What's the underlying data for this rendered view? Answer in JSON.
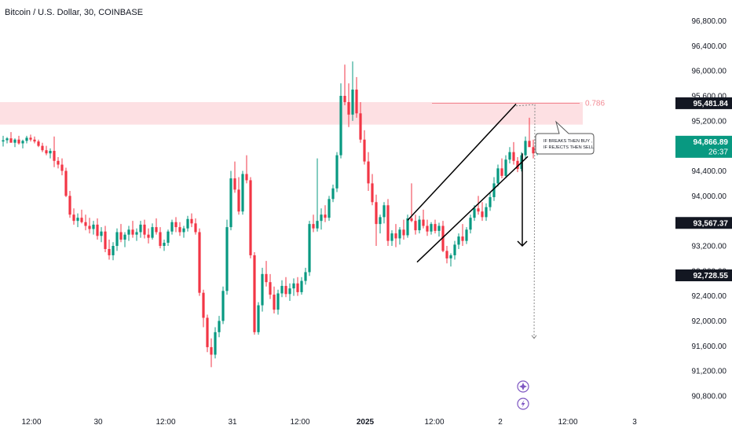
{
  "header": {
    "title": "Bitcoin / U.S. Dollar, 30, COINBASE"
  },
  "colors": {
    "up": "#26a69a",
    "up_candle": "#089981",
    "down": "#f23645",
    "zone": "#fde0e3",
    "fib_line": "#f28b95",
    "axis_text": "#131722",
    "badge_black": "#131722",
    "badge_green": "#089981",
    "icon_purple": "#7e57c2"
  },
  "price_axis": {
    "ticks": [
      "96,800.00",
      "96,400.00",
      "96,000.00",
      "95,600.00",
      "95,200.00",
      "94,800.00",
      "94,400.00",
      "94,000.00",
      "93,600.00",
      "93,200.00",
      "92,800.00",
      "92,400.00",
      "92,000.00",
      "91,600.00",
      "91,200.00",
      "90,800.00"
    ],
    "badges": {
      "resistance": "95,481.84",
      "current_price": "94,866.89",
      "countdown": "26:37",
      "level_mid": "93,567.37",
      "level_low": "92,728.55"
    }
  },
  "time_axis": {
    "labels": [
      "12:00",
      "30",
      "12:00",
      "31",
      "12:00",
      "2025",
      "12:00",
      "2",
      "12:00",
      "3"
    ]
  },
  "annotations": {
    "fib_label": "0.786",
    "note_line1": "IF BREAKS THEN BUY ,",
    "note_line2": "IF REJECTS THEN SELL"
  },
  "icons": {
    "top": "sparkle-icon",
    "bottom": "lightning-icon"
  },
  "chart_data": {
    "type": "candlestick",
    "title": "Bitcoin / U.S. Dollar, 30, COINBASE",
    "ylim": [
      90500,
      97000
    ],
    "price_ticks": [
      96800,
      96400,
      96000,
      95600,
      95200,
      94800,
      94400,
      94000,
      93600,
      93200,
      92800,
      92400,
      92000,
      91600,
      91200,
      90800
    ],
    "x_labels": [
      "12:00",
      "30",
      "12:00",
      "31",
      "12:00",
      "2025",
      "12:00",
      "2",
      "12:00",
      "3"
    ],
    "resistance_zone": [
      95140,
      95500
    ],
    "fib_level": {
      "label": "0.786",
      "price": 95480
    },
    "channel_upper": [
      [
        93610,
        93620
      ],
      [
        95470,
        95480
      ]
    ],
    "channel_lower": [
      [
        92940,
        92940
      ],
      [
        94630,
        94630
      ]
    ],
    "projection_arrow_target": 93200,
    "dotted_projection_target": 91720,
    "current_price": 94866.89,
    "price_levels": [
      95481.84,
      93567.37,
      92728.55
    ],
    "candles_ohlc": [
      [
        94870,
        94960,
        94790,
        94890
      ],
      [
        94890,
        94940,
        94840,
        94920
      ],
      [
        94920,
        95020,
        94860,
        94850
      ],
      [
        94850,
        94920,
        94780,
        94900
      ],
      [
        94900,
        94960,
        94820,
        94840
      ],
      [
        94840,
        94900,
        94760,
        94880
      ],
      [
        94880,
        94960,
        94840,
        94930
      ],
      [
        94930,
        94980,
        94870,
        94900
      ],
      [
        94900,
        94950,
        94840,
        94870
      ],
      [
        94870,
        94900,
        94780,
        94800
      ],
      [
        94800,
        94850,
        94700,
        94730
      ],
      [
        94730,
        94800,
        94650,
        94680
      ],
      [
        94680,
        94760,
        94600,
        94720
      ],
      [
        94720,
        94950,
        94460,
        94560
      ],
      [
        94560,
        94620,
        94440,
        94500
      ],
      [
        94500,
        94600,
        94330,
        94400
      ],
      [
        94400,
        94450,
        93980,
        94000
      ],
      [
        94000,
        94080,
        93650,
        93700
      ],
      [
        93700,
        93800,
        93540,
        93600
      ],
      [
        93600,
        93720,
        93500,
        93650
      ],
      [
        93650,
        93780,
        93560,
        93580
      ],
      [
        93580,
        93700,
        93450,
        93520
      ],
      [
        93520,
        93650,
        93400,
        93470
      ],
      [
        93470,
        93600,
        93380,
        93540
      ],
      [
        93540,
        93640,
        93300,
        93360
      ],
      [
        93360,
        93500,
        93260,
        93430
      ],
      [
        93430,
        93520,
        93100,
        93150
      ],
      [
        93150,
        93300,
        92980,
        93050
      ],
      [
        93050,
        93260,
        92970,
        93200
      ],
      [
        93200,
        93480,
        93120,
        93420
      ],
      [
        93420,
        93550,
        93260,
        93300
      ],
      [
        93300,
        93420,
        93180,
        93380
      ],
      [
        93380,
        93520,
        93280,
        93460
      ],
      [
        93460,
        93600,
        93330,
        93380
      ],
      [
        93380,
        93480,
        93280,
        93420
      ],
      [
        93420,
        93600,
        93330,
        93540
      ],
      [
        93540,
        93620,
        93320,
        93380
      ],
      [
        93380,
        93480,
        93240,
        93330
      ],
      [
        93330,
        93560,
        93300,
        93500
      ],
      [
        93500,
        93640,
        93380,
        93420
      ],
      [
        93420,
        93500,
        93160,
        93200
      ],
      [
        93200,
        93300,
        93120,
        93250
      ],
      [
        93250,
        93460,
        93200,
        93430
      ],
      [
        93430,
        93620,
        93380,
        93580
      ],
      [
        93580,
        93660,
        93420,
        93500
      ],
      [
        93500,
        93580,
        93360,
        93420
      ],
      [
        93420,
        93520,
        93330,
        93480
      ],
      [
        93480,
        93680,
        93430,
        93630
      ],
      [
        93630,
        93720,
        93500,
        93560
      ],
      [
        93560,
        93640,
        93380,
        93420
      ],
      [
        93420,
        93480,
        92400,
        92450
      ],
      [
        92450,
        92500,
        91900,
        92050
      ],
      [
        92050,
        92100,
        91500,
        91580
      ],
      [
        91580,
        91720,
        91260,
        91460
      ],
      [
        91460,
        91900,
        91400,
        91820
      ],
      [
        91820,
        92080,
        91740,
        92000
      ],
      [
        92000,
        92550,
        91950,
        92480
      ],
      [
        92480,
        93620,
        92420,
        93500
      ],
      [
        93500,
        94400,
        93450,
        94280
      ],
      [
        94280,
        94550,
        94050,
        94100
      ],
      [
        94100,
        94300,
        93700,
        93750
      ],
      [
        93750,
        94400,
        93700,
        94350
      ],
      [
        94350,
        94650,
        94200,
        94250
      ],
      [
        94250,
        94300,
        93000,
        93050
      ],
      [
        93050,
        93100,
        91780,
        91820
      ],
      [
        91820,
        92300,
        91780,
        92250
      ],
      [
        92250,
        92850,
        92150,
        92750
      ],
      [
        92750,
        92960,
        92550,
        92620
      ],
      [
        92620,
        92750,
        92350,
        92420
      ],
      [
        92420,
        92550,
        92120,
        92180
      ],
      [
        92180,
        92500,
        92100,
        92440
      ],
      [
        92440,
        92650,
        92380,
        92560
      ],
      [
        92560,
        92700,
        92380,
        92430
      ],
      [
        92430,
        92600,
        92320,
        92520
      ],
      [
        92520,
        92680,
        92400,
        92600
      ],
      [
        92600,
        92700,
        92400,
        92460
      ],
      [
        92460,
        92700,
        92420,
        92640
      ],
      [
        92640,
        92850,
        92580,
        92780
      ],
      [
        92780,
        93600,
        92720,
        93550
      ],
      [
        93550,
        93700,
        93420,
        93480
      ],
      [
        93480,
        94600,
        93430,
        93600
      ],
      [
        93600,
        93800,
        93460,
        93700
      ],
      [
        93700,
        93850,
        93580,
        93650
      ],
      [
        93650,
        94000,
        93600,
        93950
      ],
      [
        93950,
        94180,
        93900,
        94120
      ],
      [
        94120,
        94700,
        94060,
        94650
      ],
      [
        94650,
        95800,
        94600,
        95600
      ],
      [
        95600,
        96100,
        95450,
        95500
      ],
      [
        95500,
        95800,
        95100,
        95300
      ],
      [
        95300,
        96150,
        95200,
        95700
      ],
      [
        95700,
        95900,
        95250,
        95320
      ],
      [
        95320,
        95500,
        94850,
        94900
      ],
      [
        94900,
        95050,
        94500,
        94550
      ],
      [
        94550,
        94700,
        94080,
        94200
      ],
      [
        94200,
        94350,
        93850,
        93900
      ],
      [
        93900,
        94020,
        93200,
        93550
      ],
      [
        93550,
        93700,
        93400,
        93660
      ],
      [
        93660,
        93900,
        93560,
        93850
      ],
      [
        93850,
        93950,
        93200,
        93280
      ],
      [
        93280,
        93450,
        93200,
        93400
      ],
      [
        93400,
        93550,
        93180,
        93320
      ],
      [
        93320,
        93500,
        93220,
        93460
      ],
      [
        93460,
        93620,
        93300,
        93370
      ],
      [
        93370,
        93700,
        93330,
        93640
      ],
      [
        93640,
        94200,
        93580,
        93600
      ],
      [
        93600,
        93700,
        93380,
        93450
      ],
      [
        93450,
        93680,
        93400,
        93620
      ],
      [
        93620,
        93780,
        93480,
        93520
      ],
      [
        93520,
        93620,
        93360,
        93430
      ],
      [
        93430,
        93580,
        93380,
        93550
      ],
      [
        93550,
        93620,
        93400,
        93440
      ],
      [
        93440,
        93570,
        93350,
        93520
      ],
      [
        93520,
        93600,
        93100,
        93120
      ],
      [
        93120,
        93200,
        92920,
        93000
      ],
      [
        93000,
        93080,
        92870,
        93050
      ],
      [
        93050,
        93280,
        92980,
        93220
      ],
      [
        93220,
        93400,
        93150,
        93350
      ],
      [
        93350,
        93550,
        93200,
        93280
      ],
      [
        93280,
        93500,
        93230,
        93460
      ],
      [
        93460,
        93700,
        93400,
        93650
      ],
      [
        93650,
        93850,
        93600,
        93800
      ],
      [
        93800,
        94000,
        93700,
        93750
      ],
      [
        93750,
        93900,
        93600,
        93660
      ],
      [
        93660,
        93880,
        93600,
        93820
      ],
      [
        93820,
        94050,
        93760,
        93980
      ],
      [
        93980,
        94300,
        93920,
        94200
      ],
      [
        94200,
        94500,
        94150,
        94440
      ],
      [
        94440,
        94600,
        94280,
        94320
      ],
      [
        94320,
        94650,
        94280,
        94580
      ],
      [
        94580,
        94780,
        94520,
        94700
      ],
      [
        94700,
        94860,
        94500,
        94560
      ],
      [
        94560,
        94620,
        94380,
        94430
      ],
      [
        94430,
        94700,
        94390,
        94650
      ],
      [
        94650,
        94950,
        94600,
        94880
      ],
      [
        94880,
        95250,
        94820,
        94780
      ],
      [
        94780,
        94900,
        94600,
        94680
      ],
      [
        94680,
        95000,
        94650,
        94920
      ],
      [
        94920,
        95000,
        94780,
        94866.89
      ]
    ]
  }
}
